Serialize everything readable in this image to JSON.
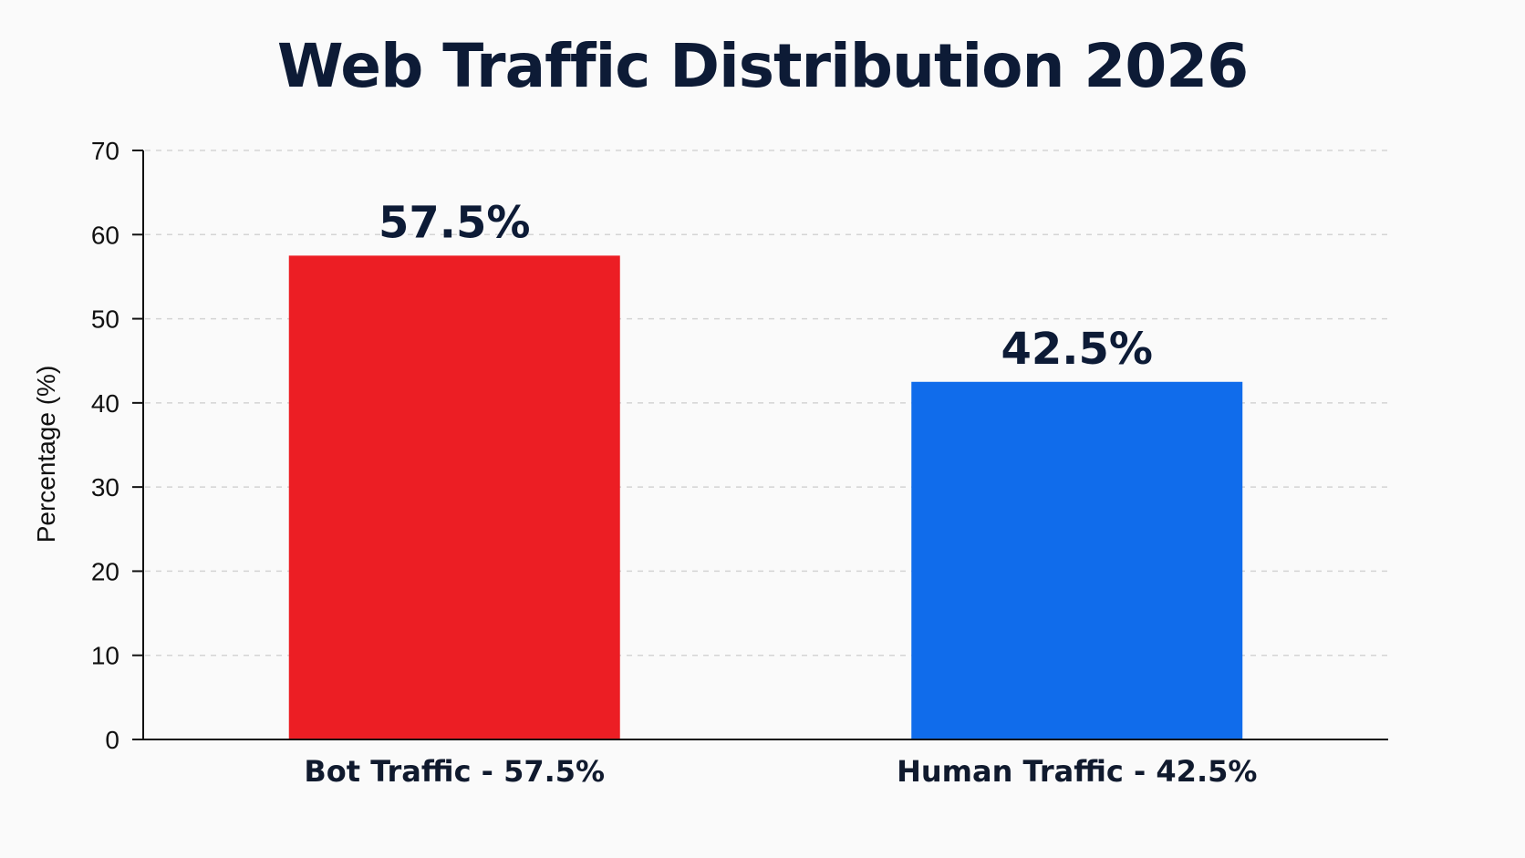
{
  "chart_data": {
    "type": "bar",
    "title": "Web Traffic Distribution 2026",
    "xlabel": "",
    "ylabel": "Percentage (%)",
    "categories": [
      "Bot Traffic - 57.5%",
      "Human Traffic - 42.5%"
    ],
    "values": [
      57.5,
      42.5
    ],
    "data_labels": [
      "57.5%",
      "42.5%"
    ],
    "colors": [
      "#ec1e24",
      "#106ceb"
    ],
    "ylim": [
      0,
      70
    ],
    "yticks": [
      0,
      10,
      20,
      30,
      40,
      50,
      60,
      70
    ],
    "grid": true,
    "grid_style": "dashed",
    "legend": "none"
  }
}
